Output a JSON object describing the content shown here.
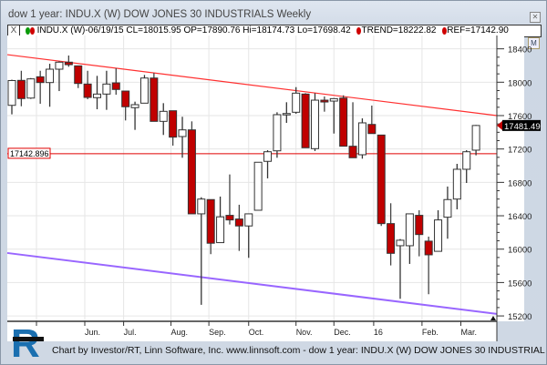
{
  "window": {
    "title": "dow 1 year: INDU.X (W) DOW JONES 30 INDUSTRIALS Weekly",
    "close_icon": "close-icon"
  },
  "infobar": {
    "close_label": "X",
    "text": "INDU.X (W)-06/19/15 CL=18015.95 OP=17890.76 Hi=18174.73 Lo=17698.42",
    "trend": "TREND=18222.82",
    "ref": "REF=17142.90",
    "colors": {
      "up_dot": "#0a9a0a",
      "down_dot": "#d00000"
    }
  },
  "m_button": "M",
  "footer": "Chart by Investor/RT, Linn Software, Inc. www.linnsoft.com - dow 1 year: INDU.X (W) DOW JONES 30 INDUSTRIAL",
  "logo_text": "R",
  "chart_data": {
    "type": "candlestick",
    "title": "",
    "xlabel": "",
    "ylabel": "",
    "ylim": [
      15200,
      18400
    ],
    "y_ticks": [
      18400,
      18000,
      17600,
      17200,
      16800,
      16400,
      16000,
      15600,
      15200
    ],
    "x_tick_labels": [
      "",
      "Jun.",
      "Jul.",
      "Aug.",
      "Sep.",
      "Oct.",
      "Nov.",
      "Dec.",
      "16",
      "Feb.",
      "Mar."
    ],
    "grid": true,
    "colors": {
      "up": "#ffffff",
      "down": "#c00000",
      "trend": "#ff3030",
      "channel": "#9966ff",
      "ref": "#e00000"
    },
    "ohlc": [
      [
        17723,
        18030,
        17615,
        18020
      ],
      [
        18022,
        18137,
        17712,
        17804
      ],
      [
        17810,
        18050,
        17800,
        18040
      ],
      [
        18065,
        18137,
        17742,
        17996
      ],
      [
        17996,
        18221,
        17706,
        18156
      ],
      [
        18156,
        18250,
        17894,
        18240
      ],
      [
        18240,
        18320,
        18185,
        18210
      ],
      [
        18196,
        18196,
        17930,
        17985
      ],
      [
        17978,
        18137,
        17796,
        17818
      ],
      [
        17815,
        18076,
        17676,
        17858
      ],
      [
        17858,
        18137,
        17669,
        17978
      ],
      [
        17992,
        18167,
        17850,
        17913
      ],
      [
        17894,
        17894,
        17542,
        17706
      ],
      [
        17695,
        17767,
        17429,
        17731
      ],
      [
        17749,
        18087,
        17749,
        18050
      ],
      [
        18050,
        18112,
        17531,
        17531
      ],
      [
        17531,
        17749,
        17368,
        17651
      ],
      [
        17658,
        17658,
        17240,
        17342
      ],
      [
        17349,
        17586,
        17095,
        17429
      ],
      [
        17429,
        17531,
        16423,
        16423
      ],
      [
        16423,
        16622,
        15333,
        16600
      ],
      [
        16594,
        16594,
        15940,
        16071
      ],
      [
        16078,
        16630,
        16078,
        16387
      ],
      [
        16405,
        16895,
        16295,
        16350
      ],
      [
        16361,
        16532,
        15979,
        16278
      ],
      [
        16278,
        16423,
        15896,
        16423
      ],
      [
        16466,
        17041,
        16466,
        17041
      ],
      [
        17052,
        17186,
        16848,
        17167
      ],
      [
        17178,
        17640,
        17095,
        17611
      ],
      [
        17615,
        17760,
        17513,
        17625
      ],
      [
        17640,
        17941,
        17622,
        17869
      ],
      [
        17858,
        17869,
        17215,
        17215
      ],
      [
        17204,
        17869,
        17175,
        17785
      ],
      [
        17785,
        17829,
        17647,
        17763
      ],
      [
        17774,
        17810,
        17385,
        17803
      ],
      [
        17810,
        17843,
        17233,
        17233
      ],
      [
        17233,
        17760,
        17095,
        17095
      ],
      [
        17131,
        17567,
        17084,
        17513
      ],
      [
        17494,
        17720,
        17385,
        17385
      ],
      [
        17367,
        17367,
        16278,
        16306
      ],
      [
        16306,
        16550,
        15805,
        15950
      ],
      [
        16041,
        16121,
        15405,
        16107
      ],
      [
        16041,
        16423,
        15823,
        16423
      ],
      [
        16405,
        16466,
        15914,
        16175
      ],
      [
        16096,
        16150,
        15460,
        15932
      ],
      [
        15974,
        16466,
        15974,
        16350
      ],
      [
        16383,
        16750,
        16125,
        16594
      ],
      [
        16600,
        17022,
        16477,
        16957
      ],
      [
        16957,
        17186,
        16793,
        17167
      ],
      [
        17186,
        17488,
        17124,
        17481.49
      ]
    ],
    "trend_line": {
      "start": 18330,
      "end": 17600
    },
    "channel_line": {
      "start": 15954,
      "end": 15224
    },
    "ref_line": {
      "value": 17142.896,
      "label": "17142.896"
    },
    "last_price_label": "17481.49"
  }
}
